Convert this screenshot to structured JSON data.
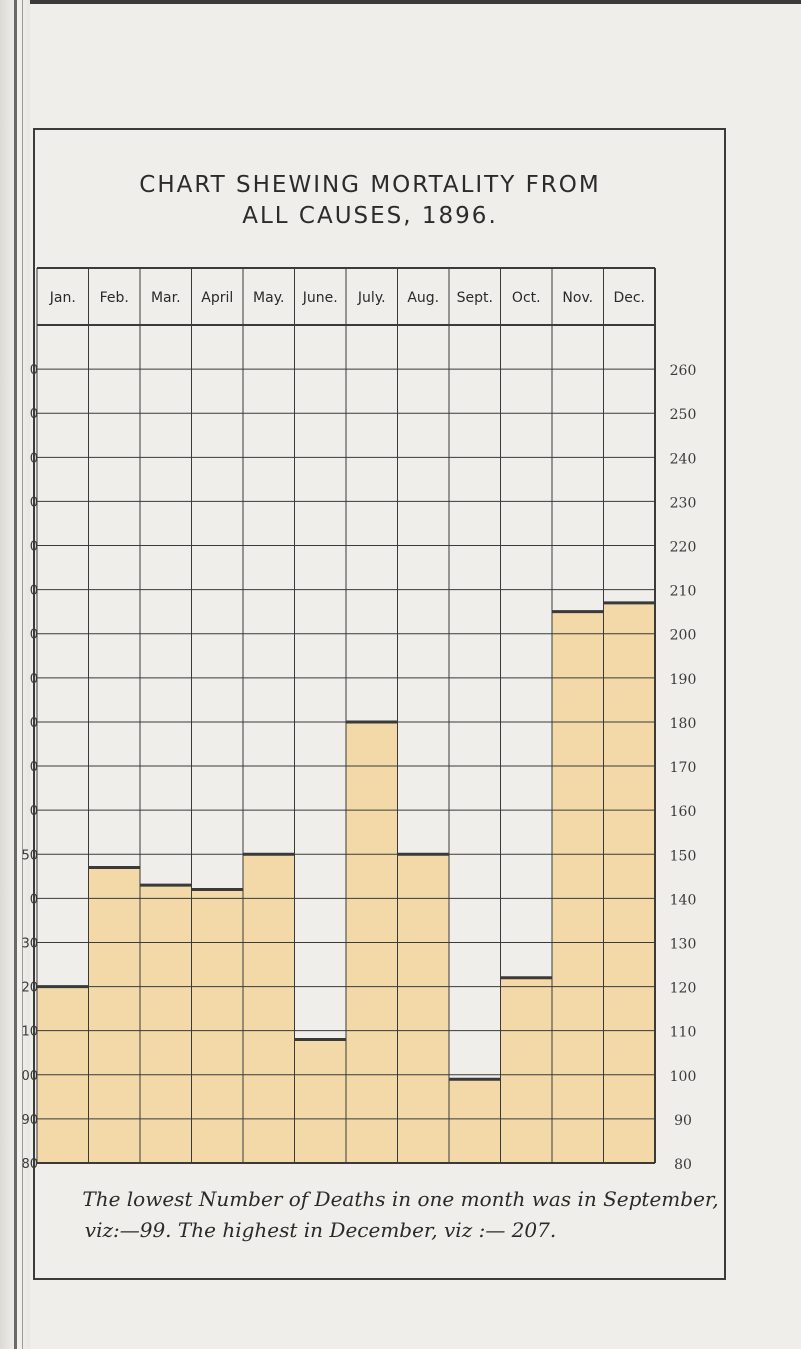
{
  "page": {
    "title_line1": "CHART SHEWING MORTALITY FROM",
    "title_line2": "ALL CAUSES, 1896.",
    "caption_line1": "The lowest Number of Deaths in one month was in September,",
    "caption_line2": "viz:—99.  The highest in December, viz :— 207.",
    "left_margin_labels": [
      "0",
      "0",
      "0",
      "0",
      "0",
      "0",
      "0",
      "0",
      "0",
      "0",
      "0",
      "50",
      "0",
      "30",
      "20",
      "10",
      "00",
      "90",
      "80"
    ]
  },
  "colors": {
    "bar_fill": "#f3d9a8",
    "grid_line": "#3a3a3a",
    "paper": "#efeeea"
  },
  "chart_data": {
    "type": "bar",
    "title": "CHART SHEWING MORTALITY FROM ALL CAUSES, 1896.",
    "categories": [
      "Jan.",
      "Feb.",
      "Mar.",
      "April",
      "May.",
      "June.",
      "July.",
      "Aug.",
      "Sept.",
      "Oct.",
      "Nov.",
      "Dec."
    ],
    "values": [
      120,
      147,
      143,
      142,
      150,
      108,
      180,
      150,
      99,
      122,
      205,
      207
    ],
    "yticks": [
      "260",
      "250",
      "240",
      "230",
      "220",
      "210",
      "200",
      "190",
      "180",
      "170",
      "160",
      "150",
      "140",
      "130",
      "120",
      "110",
      "100",
      "90",
      "80"
    ],
    "ylim": [
      80,
      270
    ],
    "ytick_step": 10,
    "grid": true,
    "xlabel": "",
    "ylabel": ""
  }
}
